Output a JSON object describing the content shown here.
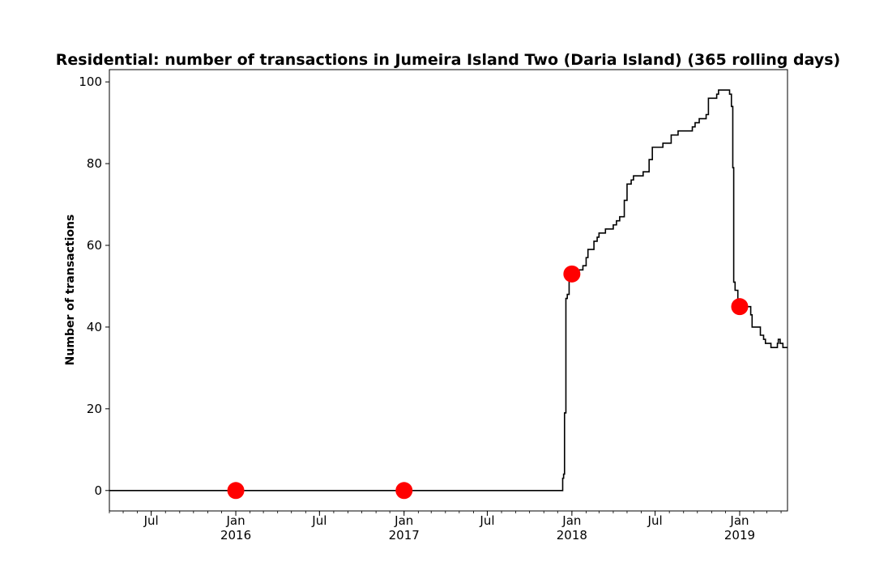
{
  "chart_data": {
    "type": "line",
    "title": "Residential: number of transactions in Jumeira Island Two (Daria Island) (365 rolling days)",
    "xlabel": "",
    "ylabel": "Number of transactions",
    "xlim": [
      "2015-04-01",
      "2019-04-15"
    ],
    "ylim": [
      -5,
      103
    ],
    "grid": false,
    "y_ticks": [
      0,
      20,
      40,
      60,
      80,
      100
    ],
    "x_ticks": [
      {
        "date": "2015-07-01",
        "label": "Jul",
        "sub": ""
      },
      {
        "date": "2016-01-01",
        "label": "Jan",
        "sub": "2016"
      },
      {
        "date": "2016-07-01",
        "label": "Jul",
        "sub": ""
      },
      {
        "date": "2017-01-01",
        "label": "Jan",
        "sub": "2017"
      },
      {
        "date": "2017-07-01",
        "label": "Jul",
        "sub": ""
      },
      {
        "date": "2018-01-01",
        "label": "Jan",
        "sub": "2018"
      },
      {
        "date": "2018-07-01",
        "label": "Jul",
        "sub": ""
      },
      {
        "date": "2019-01-01",
        "label": "Jan",
        "sub": "2019"
      }
    ],
    "series": [
      {
        "style": "step",
        "color": "#000000",
        "points": [
          [
            "2015-04-01",
            0
          ],
          [
            "2017-12-10",
            0
          ],
          [
            "2017-12-12",
            3
          ],
          [
            "2017-12-14",
            4
          ],
          [
            "2017-12-16",
            19
          ],
          [
            "2017-12-19",
            47
          ],
          [
            "2017-12-22",
            48
          ],
          [
            "2017-12-26",
            53
          ],
          [
            "2018-01-10",
            54
          ],
          [
            "2018-01-25",
            55
          ],
          [
            "2018-02-01",
            57
          ],
          [
            "2018-02-05",
            59
          ],
          [
            "2018-02-18",
            61
          ],
          [
            "2018-02-25",
            62
          ],
          [
            "2018-03-01",
            63
          ],
          [
            "2018-03-15",
            64
          ],
          [
            "2018-04-01",
            65
          ],
          [
            "2018-04-08",
            66
          ],
          [
            "2018-04-15",
            67
          ],
          [
            "2018-04-25",
            71
          ],
          [
            "2018-05-01",
            75
          ],
          [
            "2018-05-10",
            76
          ],
          [
            "2018-05-15",
            77
          ],
          [
            "2018-06-05",
            78
          ],
          [
            "2018-06-18",
            81
          ],
          [
            "2018-06-25",
            84
          ],
          [
            "2018-07-18",
            85
          ],
          [
            "2018-08-05",
            87
          ],
          [
            "2018-08-20",
            88
          ],
          [
            "2018-09-20",
            89
          ],
          [
            "2018-09-26",
            90
          ],
          [
            "2018-10-05",
            91
          ],
          [
            "2018-10-20",
            92
          ],
          [
            "2018-10-25",
            96
          ],
          [
            "2018-11-12",
            97
          ],
          [
            "2018-11-16",
            98
          ],
          [
            "2018-12-10",
            97
          ],
          [
            "2018-12-14",
            94
          ],
          [
            "2018-12-17",
            79
          ],
          [
            "2018-12-19",
            51
          ],
          [
            "2018-12-22",
            49
          ],
          [
            "2018-12-28",
            46
          ],
          [
            "2019-01-10",
            45
          ],
          [
            "2019-01-25",
            43
          ],
          [
            "2019-01-28",
            40
          ],
          [
            "2019-02-15",
            38
          ],
          [
            "2019-02-22",
            37
          ],
          [
            "2019-02-26",
            36
          ],
          [
            "2019-03-10",
            35
          ],
          [
            "2019-03-24",
            36
          ],
          [
            "2019-03-26",
            37
          ],
          [
            "2019-03-30",
            36
          ],
          [
            "2019-04-05",
            35
          ],
          [
            "2019-04-15",
            35
          ]
        ]
      },
      {
        "style": "markers",
        "color": "#ff0000",
        "points": [
          [
            "2016-01-01",
            0
          ],
          [
            "2017-01-01",
            0
          ],
          [
            "2018-01-01",
            53
          ],
          [
            "2019-01-01",
            45
          ]
        ]
      }
    ]
  }
}
